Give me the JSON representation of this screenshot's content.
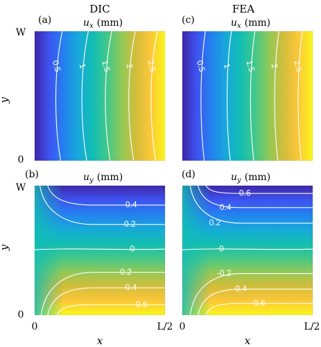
{
  "figure": {
    "columns": [
      "DIC",
      "FEA"
    ],
    "axis_tick_labels": {
      "x_start": "0",
      "x_end": "L/2",
      "y_start": "0",
      "y_end": "W"
    },
    "axis_labels": {
      "x": "x",
      "y": "y"
    }
  },
  "colors": {
    "colormap": [
      "#3e26a8",
      "#3d53f0",
      "#2481ef",
      "#17a8da",
      "#12bdb4",
      "#42c78a",
      "#91c958",
      "#d3bd3a",
      "#fcc739",
      "#f9f619"
    ],
    "contour": "#ffffff"
  },
  "chart_data": [
    {
      "type": "heatmap",
      "panel": "(a)",
      "title": "ux (mm)",
      "title_var": "u",
      "title_sub": "x",
      "title_unit": "(mm)",
      "column": "DIC",
      "field": "ux",
      "range": [
        0,
        3
      ],
      "levels": [
        0.5,
        1,
        1.5,
        2,
        2.5
      ],
      "contour_labels": [
        "0.5",
        "1",
        "1.5",
        "2",
        "2.5"
      ],
      "xlim": [
        0,
        1
      ],
      "ylim": [
        0,
        1
      ]
    },
    {
      "type": "heatmap",
      "panel": "(c)",
      "title": "ux (mm)",
      "title_var": "u",
      "title_sub": "x",
      "title_unit": "(mm)",
      "column": "FEA",
      "field": "ux",
      "range": [
        0,
        3
      ],
      "levels": [
        0.5,
        1,
        1.5,
        2,
        2.5
      ],
      "contour_labels": [
        "0.5",
        "1",
        "1.5",
        "2",
        "2.5"
      ],
      "xlim": [
        0,
        1
      ],
      "ylim": [
        0,
        1
      ]
    },
    {
      "type": "heatmap",
      "panel": "(b)",
      "title": "uy (mm)",
      "title_var": "u",
      "title_sub": "y",
      "title_unit": "(mm)",
      "column": "DIC",
      "field": "uy",
      "sign": 1,
      "range": [
        -0.8,
        0.8
      ],
      "levels": [
        -0.4,
        -0.2,
        0,
        0.2,
        0.4,
        0.6
      ],
      "contour_labels": [
        "-0.4",
        "-0.2",
        "0",
        "0.2",
        "0.4",
        "0.6"
      ],
      "xlim": [
        0,
        1
      ],
      "ylim": [
        0,
        1
      ]
    },
    {
      "type": "heatmap",
      "panel": "(d)",
      "title": "uy (mm)",
      "title_var": "u",
      "title_sub": "y",
      "title_unit": "(mm)",
      "column": "FEA",
      "field": "uy",
      "sign": -1,
      "range": [
        -0.8,
        0.8
      ],
      "levels": [
        0.6,
        0.4,
        0.2,
        0,
        -0.2,
        -0.4,
        -0.6
      ],
      "contour_labels": [
        "0.6",
        "0.4",
        "0.2",
        "0",
        "-0.2",
        "-0.4",
        "-0.6"
      ],
      "xlim": [
        0,
        1
      ],
      "ylim": [
        0,
        1
      ]
    }
  ]
}
